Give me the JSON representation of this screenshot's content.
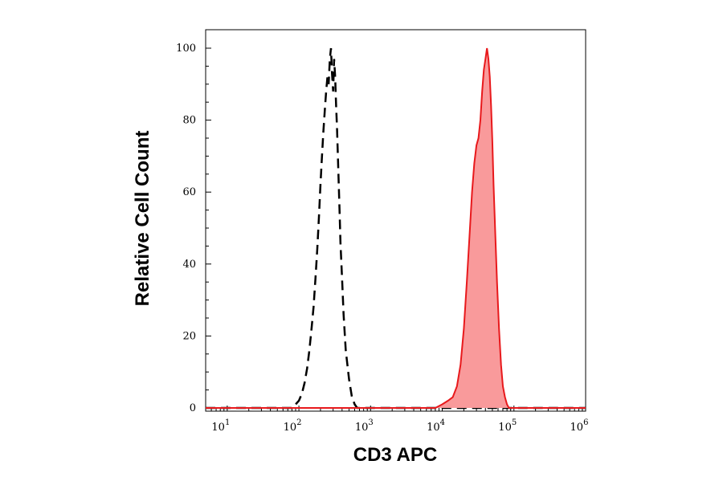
{
  "chart_data": {
    "type": "area",
    "title": "",
    "xlabel": "CD3 APC",
    "ylabel": "Relative Cell Count",
    "x_scale": "log",
    "xlim": [
      5,
      1000000
    ],
    "ylim": [
      0,
      105
    ],
    "grid": false,
    "legend": "none",
    "x_ticks": [
      {
        "base": "10",
        "exp": "1",
        "value": 10
      },
      {
        "base": "10",
        "exp": "2",
        "value": 100
      },
      {
        "base": "10",
        "exp": "3",
        "value": 1000
      },
      {
        "base": "10",
        "exp": "4",
        "value": 10000
      },
      {
        "base": "10",
        "exp": "5",
        "value": 100000
      },
      {
        "base": "10",
        "exp": "6",
        "value": 1000000
      }
    ],
    "y_ticks": [
      "0",
      "20",
      "40",
      "60",
      "80",
      "100"
    ],
    "series": [
      {
        "style": "dashed",
        "color": "#000000",
        "fill": "none",
        "x": [
          5,
          80,
          90,
          100,
          110,
          120,
          130,
          140,
          150,
          160,
          170,
          180,
          190,
          200,
          210,
          220,
          230,
          240,
          250,
          260,
          270,
          280,
          290,
          300,
          310,
          320,
          330,
          340,
          350,
          360,
          370,
          380,
          400,
          420,
          450,
          500,
          550,
          600,
          650,
          700,
          1000000
        ],
        "y": [
          0,
          0,
          1,
          2,
          4,
          7,
          11,
          16,
          22,
          28,
          36,
          44,
          53,
          62,
          70,
          77,
          83,
          88,
          92,
          90,
          97,
          100,
          93,
          88,
          97,
          92,
          84,
          78,
          70,
          62,
          54,
          46,
          36,
          26,
          16,
          8,
          3,
          1,
          0,
          0,
          0
        ]
      },
      {
        "style": "solid",
        "color": "#e8191c",
        "fill": "#f99a9b",
        "x": [
          5,
          8000,
          10000,
          12000,
          14000,
          16000,
          18000,
          20000,
          22000,
          24000,
          26000,
          28000,
          30000,
          32000,
          34000,
          36000,
          38000,
          40000,
          42000,
          44000,
          46000,
          48000,
          50000,
          52000,
          55000,
          58000,
          62000,
          66000,
          70000,
          75000,
          80000,
          85000,
          1000000
        ],
        "y": [
          0,
          0,
          1,
          2,
          3,
          6,
          12,
          22,
          35,
          48,
          60,
          68,
          73,
          75,
          80,
          88,
          94,
          97,
          100,
          97,
          92,
          84,
          74,
          62,
          48,
          35,
          22,
          12,
          6,
          3,
          1,
          0,
          0
        ]
      }
    ]
  }
}
